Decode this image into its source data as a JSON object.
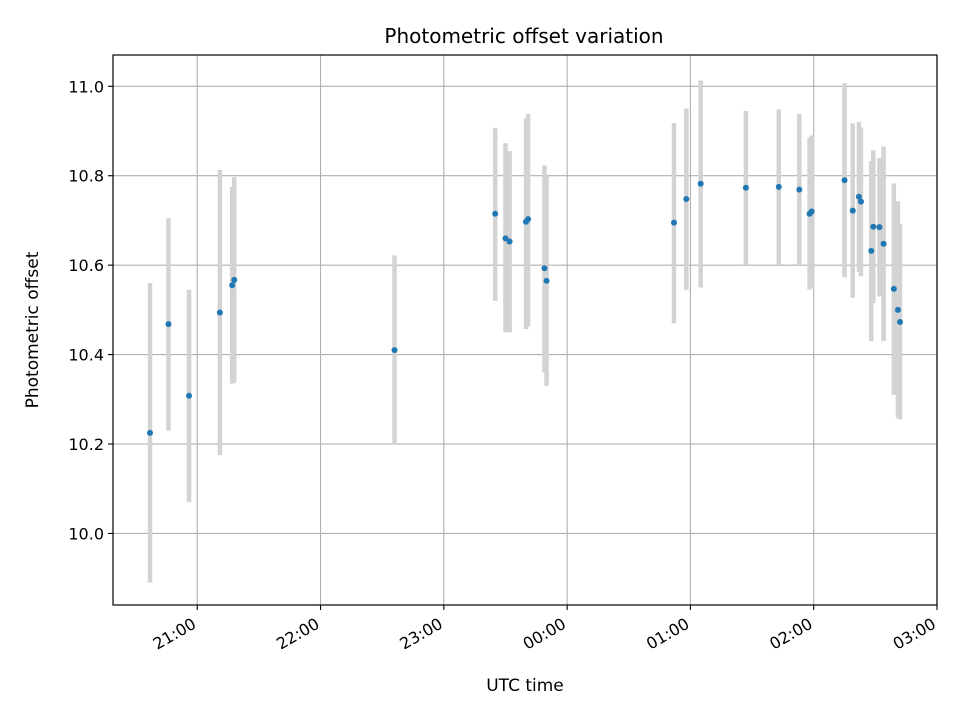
{
  "chart_data": {
    "type": "scatter",
    "title": "Photometric offset variation",
    "xlabel": "UTC time",
    "ylabel": "Photometric offset",
    "x_start": "20:15",
    "xlim": [
      "20:19",
      "03:00"
    ],
    "ylim": [
      9.84,
      11.07
    ],
    "grid": true,
    "x_ticks": [
      "21:00",
      "22:00",
      "23:00",
      "00:00",
      "01:00",
      "02:00",
      "03:00"
    ],
    "y_ticks": [
      "10.0",
      "10.2",
      "10.4",
      "10.6",
      "10.8",
      "11.0"
    ],
    "colors": {
      "point": "#1f77b4",
      "errorbar": "#d3d3d3",
      "grid": "#b0b0b0"
    },
    "points": [
      {
        "x": "20:37",
        "y": 10.225,
        "ylo": 9.89,
        "yhi": 10.56
      },
      {
        "x": "20:46",
        "y": 10.468,
        "ylo": 10.23,
        "yhi": 10.705
      },
      {
        "x": "20:56",
        "y": 10.308,
        "ylo": 10.07,
        "yhi": 10.545
      },
      {
        "x": "21:11",
        "y": 10.494,
        "ylo": 10.175,
        "yhi": 10.813
      },
      {
        "x": "21:17",
        "y": 10.555,
        "ylo": 10.335,
        "yhi": 10.775
      },
      {
        "x": "21:18",
        "y": 10.567,
        "ylo": 10.337,
        "yhi": 10.797
      },
      {
        "x": "22:36",
        "y": 10.41,
        "ylo": 10.198,
        "yhi": 10.622
      },
      {
        "x": "23:25",
        "y": 10.715,
        "ylo": 10.52,
        "yhi": 10.907
      },
      {
        "x": "23:30",
        "y": 10.66,
        "ylo": 10.45,
        "yhi": 10.873
      },
      {
        "x": "23:32",
        "y": 10.653,
        "ylo": 10.45,
        "yhi": 10.855
      },
      {
        "x": "23:40",
        "y": 10.697,
        "ylo": 10.457,
        "yhi": 10.928
      },
      {
        "x": "23:41",
        "y": 10.703,
        "ylo": 10.463,
        "yhi": 10.938
      },
      {
        "x": "23:49",
        "y": 10.593,
        "ylo": 10.36,
        "yhi": 10.823
      },
      {
        "x": "23:50",
        "y": 10.565,
        "ylo": 10.33,
        "yhi": 10.8
      },
      {
        "x": "00:52",
        "y": 10.695,
        "ylo": 10.47,
        "yhi": 10.918
      },
      {
        "x": "00:58",
        "y": 10.748,
        "ylo": 10.545,
        "yhi": 10.95
      },
      {
        "x": "01:05",
        "y": 10.782,
        "ylo": 10.55,
        "yhi": 11.013
      },
      {
        "x": "01:27",
        "y": 10.773,
        "ylo": 10.6,
        "yhi": 10.945
      },
      {
        "x": "01:43",
        "y": 10.775,
        "ylo": 10.6,
        "yhi": 10.948
      },
      {
        "x": "01:53",
        "y": 10.769,
        "ylo": 10.6,
        "yhi": 10.938
      },
      {
        "x": "01:58",
        "y": 10.715,
        "ylo": 10.545,
        "yhi": 10.885
      },
      {
        "x": "01:59",
        "y": 10.72,
        "ylo": 10.55,
        "yhi": 10.89
      },
      {
        "x": "02:15",
        "y": 10.79,
        "ylo": 10.573,
        "yhi": 11.007
      },
      {
        "x": "02:19",
        "y": 10.722,
        "ylo": 10.527,
        "yhi": 10.917
      },
      {
        "x": "02:22",
        "y": 10.753,
        "ylo": 10.585,
        "yhi": 10.92
      },
      {
        "x": "02:23",
        "y": 10.742,
        "ylo": 10.575,
        "yhi": 10.908
      },
      {
        "x": "02:28",
        "y": 10.632,
        "ylo": 10.43,
        "yhi": 10.833
      },
      {
        "x": "02:29",
        "y": 10.686,
        "ylo": 10.515,
        "yhi": 10.857
      },
      {
        "x": "02:32",
        "y": 10.685,
        "ylo": 10.53,
        "yhi": 10.84
      },
      {
        "x": "02:34",
        "y": 10.648,
        "ylo": 10.43,
        "yhi": 10.865
      },
      {
        "x": "02:39",
        "y": 10.547,
        "ylo": 10.31,
        "yhi": 10.783
      },
      {
        "x": "02:41",
        "y": 10.5,
        "ylo": 10.258,
        "yhi": 10.743
      },
      {
        "x": "02:42",
        "y": 10.473,
        "ylo": 10.255,
        "yhi": 10.692
      }
    ]
  }
}
